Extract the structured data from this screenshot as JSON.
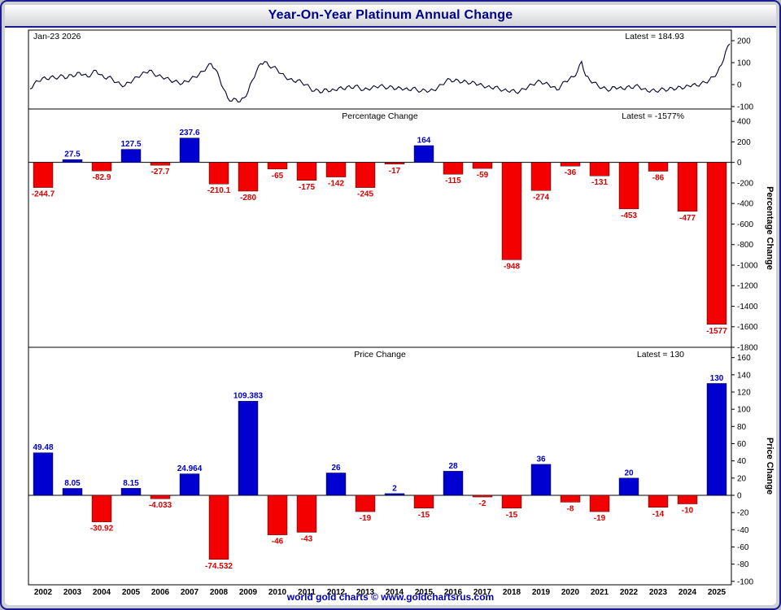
{
  "window": {
    "title": "Year-On-Year Platinum Annual Change"
  },
  "footer": {
    "text": "world gold charts © www.goldchartsrus.com"
  },
  "colors": {
    "positive": "#0000d0",
    "negative": "#f40000",
    "label_positive": "#0000cc",
    "label_negative": "#dd0000",
    "line": "#00002a",
    "axis": "#000000",
    "accent": "#00008b"
  },
  "chart_data": [
    {
      "type": "line",
      "name": "platinum-price-line",
      "annotations": {
        "top_left": "Jan-23  2026",
        "top_right": "Latest = 184.93"
      },
      "latest": 184.93,
      "x_range": [
        2002.0,
        2026.07
      ],
      "ylim": [
        -111,
        248
      ],
      "y_ticks": [
        200,
        100,
        0,
        -100
      ],
      "values": [
        -20,
        5,
        15,
        30,
        25,
        35,
        30,
        35,
        40,
        30,
        45,
        40,
        55,
        45,
        35,
        50,
        65,
        45,
        30,
        35,
        25,
        10,
        0,
        -5,
        10,
        20,
        35,
        45,
        55,
        65,
        50,
        40,
        35,
        30,
        20,
        15,
        10,
        5,
        15,
        25,
        35,
        45,
        60,
        80,
        95,
        70,
        30,
        -20,
        -60,
        -75,
        -65,
        -78,
        -60,
        -30,
        20,
        60,
        95,
        105,
        85,
        80,
        70,
        50,
        35,
        25,
        15,
        20,
        10,
        0,
        -15,
        -30,
        -25,
        -35,
        -20,
        -30,
        -25,
        -15,
        -20,
        -10,
        -15,
        -5,
        -15,
        -25,
        -20,
        -15,
        -10,
        -5,
        -10,
        -15,
        -10,
        -20,
        -15,
        -20,
        -25,
        -15,
        -25,
        -30,
        -25,
        -30,
        -25,
        -15,
        0,
        15,
        25,
        15,
        20,
        10,
        15,
        5,
        10,
        0,
        -5,
        -10,
        -15,
        -10,
        -20,
        -25,
        -30,
        -25,
        -35,
        -30,
        -20,
        -10,
        0,
        10,
        15,
        5,
        0,
        -10,
        -25,
        -5,
        15,
        25,
        35,
        60,
        105,
        40,
        20,
        10,
        -5,
        -15,
        -20,
        -25,
        -10,
        -15,
        -20,
        -10,
        -15,
        -5,
        -10,
        -20,
        -30,
        -25,
        -30,
        -25,
        -20,
        -25,
        -15,
        -20,
        -10,
        -15,
        -5,
        0,
        -5,
        5,
        10,
        20,
        35,
        55,
        90,
        150,
        184.93
      ]
    },
    {
      "type": "bar",
      "title": "Percentage Change",
      "latest_label": "Latest = -1577%",
      "ylabel": "Percentage Change",
      "categories": [
        "2002",
        "2003",
        "2004",
        "2005",
        "2006",
        "2007",
        "2008",
        "2009",
        "2010",
        "2011",
        "2012",
        "2013",
        "2014",
        "2015",
        "2016",
        "2017",
        "2018",
        "2019",
        "2020",
        "2021",
        "2022",
        "2023",
        "2024",
        "2025"
      ],
      "values": [
        -244.7,
        27.5,
        -82.9,
        127.5,
        -27.7,
        237.6,
        -210.1,
        -280,
        -65,
        -175,
        -142,
        -245,
        -17,
        164,
        -115,
        -59,
        -948,
        -274,
        -36,
        -131,
        -453,
        -86,
        -477,
        -1577
      ],
      "labels": [
        "-244.7",
        "27.5",
        "-82.9",
        "127.5",
        "-27.7",
        "237.6",
        "-210.1",
        "-280",
        "-65",
        "-175",
        "-142",
        "-245",
        "-17",
        "164",
        "-115",
        "-59",
        "-948",
        "-274",
        "-36",
        "-131",
        "-453",
        "-86",
        "-477",
        "-1577"
      ],
      "ylim": [
        -1800,
        520
      ],
      "y_ticks": [
        400,
        200,
        0,
        -200,
        -400,
        -600,
        -800,
        -1000,
        -1200,
        -1400,
        -1600,
        -1800
      ]
    },
    {
      "type": "bar",
      "title": "Price Change",
      "latest_label": "Latest = 130",
      "ylabel": "Price Change",
      "categories": [
        "2002",
        "2003",
        "2004",
        "2005",
        "2006",
        "2007",
        "2008",
        "2009",
        "2010",
        "2011",
        "2012",
        "2013",
        "2014",
        "2015",
        "2016",
        "2017",
        "2018",
        "2019",
        "2020",
        "2021",
        "2022",
        "2023",
        "2024",
        "2025"
      ],
      "values": [
        49.48,
        8.05,
        -30.92,
        8.15,
        -4.033,
        24.964,
        -74.532,
        109.383,
        -46,
        -43,
        26,
        -19,
        2,
        -15,
        28,
        -2,
        -15,
        36,
        -8,
        -19,
        20,
        -14,
        -10,
        130
      ],
      "labels": [
        "49.48",
        "8.05",
        "-30.92",
        "8.15",
        "-4.033",
        "24.964",
        "-74.532",
        "109.383",
        "-46",
        "-43",
        "26",
        "-19",
        "2",
        "-15",
        "28",
        "-2",
        "-15",
        "36",
        "-8",
        "-19",
        "20",
        "-14",
        "-10",
        "130"
      ],
      "ylim": [
        -104,
        172
      ],
      "y_ticks": [
        160,
        140,
        120,
        100,
        80,
        60,
        40,
        20,
        0,
        -20,
        -40,
        -60,
        -80,
        -100
      ]
    }
  ]
}
